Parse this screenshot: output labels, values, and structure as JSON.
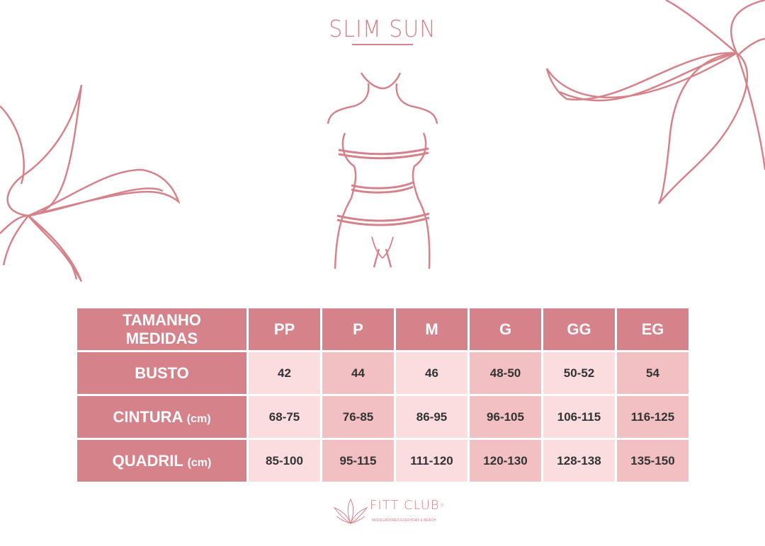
{
  "brand": {
    "title": "SLIM SUN"
  },
  "colors": {
    "accent": "#d6828a",
    "cell_light": "#fbdde0",
    "cell_medium": "#f2c0c3"
  },
  "table": {
    "header_line1": "TAMANHO",
    "header_line2": "MEDIDAS",
    "sizes": [
      "PP",
      "P",
      "M",
      "G",
      "GG",
      "EG"
    ],
    "rows": [
      {
        "label": "BUSTO",
        "unit": "",
        "values": [
          "42",
          "44",
          "46",
          "48-50",
          "50-52",
          "54"
        ]
      },
      {
        "label": "CINTURA",
        "unit": "(cm)",
        "values": [
          "68-75",
          "76-85",
          "86-95",
          "96-105",
          "106-115",
          "116-125"
        ]
      },
      {
        "label": "QUADRIL",
        "unit": "(cm)",
        "values": [
          "85-100",
          "95-115",
          "111-120",
          "120-130",
          "128-138",
          "135-150"
        ]
      }
    ]
  },
  "footer": {
    "logo_name": "FITT CLUB",
    "registered": "®",
    "tagline": "MODELADORES EVERYDAY & BEACH"
  }
}
